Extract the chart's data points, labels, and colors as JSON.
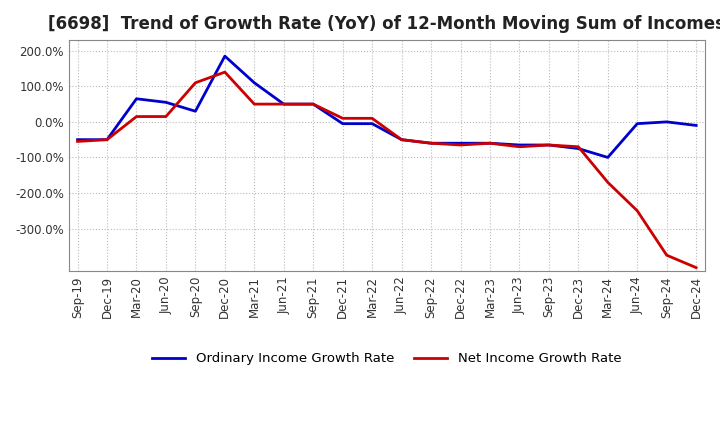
{
  "title": "[6698]  Trend of Growth Rate (YoY) of 12-Month Moving Sum of Incomes",
  "xlabel": "",
  "ylabel": "",
  "ylim": [
    -420,
    230
  ],
  "yticks": [
    200,
    100,
    0,
    -100,
    -200,
    -300
  ],
  "ytick_labels": [
    "200.0%",
    "100.0%",
    "0.0%",
    "-100.0%",
    "-200.0%",
    "-300.0%"
  ],
  "x_labels": [
    "Sep-19",
    "Dec-19",
    "Mar-20",
    "Jun-20",
    "Sep-20",
    "Dec-20",
    "Mar-21",
    "Jun-21",
    "Sep-21",
    "Dec-21",
    "Mar-22",
    "Jun-22",
    "Sep-22",
    "Dec-22",
    "Mar-23",
    "Jun-23",
    "Sep-23",
    "Dec-23",
    "Mar-24",
    "Jun-24",
    "Sep-24",
    "Dec-24"
  ],
  "ordinary_income": [
    -50,
    -50,
    65,
    55,
    30,
    185,
    110,
    50,
    50,
    -5,
    -5,
    -50,
    -60,
    -60,
    -60,
    -65,
    -65,
    -75,
    -100,
    -5,
    0,
    -10
  ],
  "net_income": [
    -55,
    -50,
    15,
    15,
    110,
    140,
    50,
    50,
    50,
    10,
    10,
    -50,
    -60,
    -65,
    -60,
    -70,
    -65,
    -70,
    -170,
    -250,
    -375,
    -410
  ],
  "ordinary_color": "#0000cc",
  "net_color": "#cc0000",
  "line_width": 2.0,
  "grid_color": "#bbbbbb",
  "background_color": "#ffffff",
  "legend_ordinary": "Ordinary Income Growth Rate",
  "legend_net": "Net Income Growth Rate",
  "title_fontsize": 12,
  "tick_fontsize": 8.5,
  "legend_fontsize": 9.5
}
